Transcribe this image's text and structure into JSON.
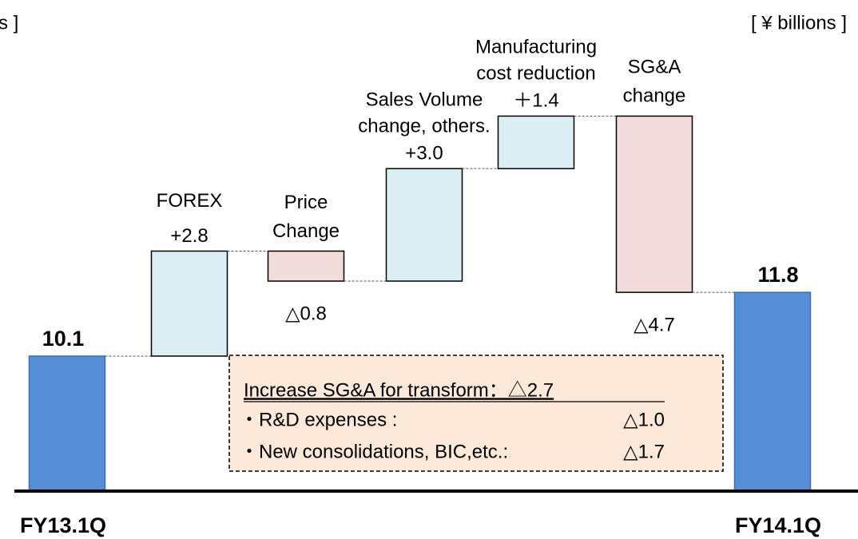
{
  "chart_data": {
    "type": "waterfall",
    "unit_label": "[ ¥ billions ]",
    "unit_label_cropped": "s ]",
    "categories": [
      [
        "FY13.1Q"
      ],
      [
        "FOREX"
      ],
      [
        "Price",
        "Change"
      ],
      [
        "Sales Volume",
        "change, others."
      ],
      [
        "Manufacturing",
        "cost reduction"
      ],
      [
        "SG&A",
        "change"
      ],
      [
        "FY14.1Q"
      ]
    ],
    "values": [
      10.1,
      2.8,
      -0.8,
      3.0,
      1.4,
      -4.7,
      11.8
    ],
    "value_labels": [
      "10.1",
      "+2.8",
      "△0.8",
      "+3.0",
      "＋1.4",
      "△4.7",
      "11.8"
    ],
    "measure": [
      "absolute",
      "relative",
      "relative",
      "relative",
      "relative",
      "relative",
      "absolute"
    ],
    "colors": {
      "absolute": "#558ed5",
      "increase": "#dbeef4",
      "decrease": "#f2dcdb"
    },
    "ylim": [
      6.5,
      19
    ],
    "note": {
      "title": "Increase SG&A for transform：△2.7",
      "items": [
        [
          "・R&D expenses :",
          "△1.0"
        ],
        [
          "・New consolidations, BIC,etc.:",
          "△1.7"
        ]
      ]
    }
  }
}
